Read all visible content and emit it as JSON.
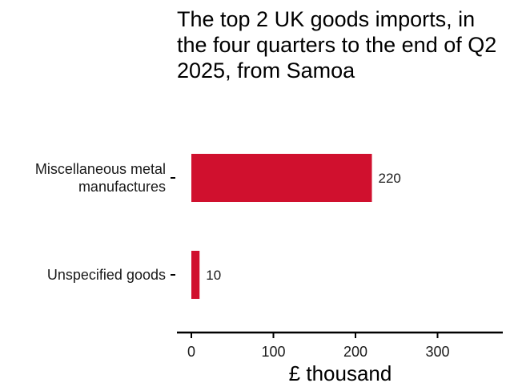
{
  "chart_data": {
    "type": "bar",
    "orientation": "horizontal",
    "title": "The top 2 UK goods imports, in the four quarters to the end of Q2 2025, from Samoa",
    "categories": [
      "Miscellaneous metal manufactures",
      "Unspecified goods"
    ],
    "category_lines": [
      [
        "Miscellaneous metal",
        "manufactures"
      ],
      [
        "Unspecified goods"
      ]
    ],
    "values": [
      220,
      10
    ],
    "value_labels": [
      "220",
      "10"
    ],
    "xlabel": "£ thousand",
    "ylabel": "",
    "xticks": [
      0,
      100,
      200,
      300
    ],
    "xtick_labels": [
      "0",
      "100",
      "200",
      "300"
    ],
    "xlim": [
      -16,
      380
    ],
    "bar_color": "#d0102e",
    "grid": false,
    "legend": "none"
  }
}
